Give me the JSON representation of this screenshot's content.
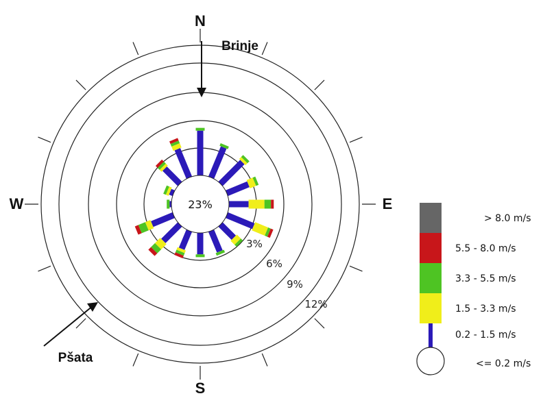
{
  "chart_data": {
    "type": "wind-rose",
    "compass": {
      "north": "N",
      "east": "E",
      "south": "S",
      "west": "W"
    },
    "calm_label": "23%",
    "calm_percent": 23,
    "ring_labels": [
      "3%",
      "6%",
      "9%",
      "12%"
    ],
    "rings": [
      3,
      6,
      9,
      12
    ],
    "annotations": [
      "Brinje",
      "Pšata"
    ],
    "speed_bins": [
      {
        "label": "<= 0.2 m/s",
        "color": "#ffffff"
      },
      {
        "label": "0.2 - 1.5 m/s",
        "color": "#2b1ab8"
      },
      {
        "label": "1.5 - 3.3 m/s",
        "color": "#f0ee1a"
      },
      {
        "label": "3.3 - 5.5 m/s",
        "color": "#4ec423"
      },
      {
        "label": "5.5 - 8.0 m/s",
        "color": "#c8161a"
      },
      {
        "label": "> 8.0 m/s",
        "color": "#666666"
      }
    ],
    "directions": [
      {
        "dir": "N",
        "segments": [
          4.8,
          0.0,
          0.3,
          0.0
        ]
      },
      {
        "dir": "NNE",
        "segments": [
          3.5,
          0.0,
          0.3,
          0.0
        ]
      },
      {
        "dir": "NE",
        "segments": [
          3.3,
          0.3,
          0.3,
          0.0
        ]
      },
      {
        "dir": "ENE",
        "segments": [
          2.5,
          0.7,
          0.3,
          0.0
        ]
      },
      {
        "dir": "E",
        "segments": [
          2.1,
          1.7,
          0.7,
          0.3
        ]
      },
      {
        "dir": "ESE",
        "segments": [
          3.1,
          1.5,
          0.3,
          0.3
        ]
      },
      {
        "dir": "SE",
        "segments": [
          2.0,
          0.6,
          0.3,
          0.0
        ]
      },
      {
        "dir": "SSE",
        "segments": [
          2.4,
          0.0,
          0.3,
          0.0
        ]
      },
      {
        "dir": "S",
        "segments": [
          2.3,
          0.0,
          0.3,
          0.0
        ]
      },
      {
        "dir": "SSW",
        "segments": [
          2.1,
          0.3,
          0.3,
          0.3
        ]
      },
      {
        "dir": "SW",
        "segments": [
          2.5,
          0.8,
          0.6,
          0.4
        ]
      },
      {
        "dir": "WSW",
        "segments": [
          2.5,
          0.6,
          0.8,
          0.4
        ]
      },
      {
        "dir": "W",
        "segments": [
          0.2,
          0.0,
          0.3,
          0.0
        ]
      },
      {
        "dir": "WNW",
        "segments": [
          0.4,
          0.3,
          0.3,
          0.0
        ]
      },
      {
        "dir": "NW",
        "segments": [
          2.3,
          0.3,
          0.3,
          0.3
        ]
      },
      {
        "dir": "NNW",
        "segments": [
          3.3,
          0.5,
          0.3,
          0.3
        ]
      }
    ]
  }
}
